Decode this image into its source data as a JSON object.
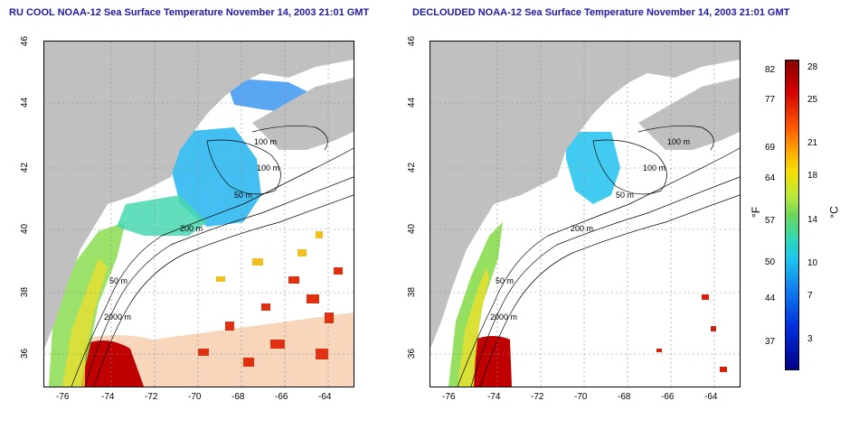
{
  "titles": {
    "left": "RU COOL NOAA-12 Sea Surface Temperature November 14, 2003 21:01 GMT",
    "right": "DECLOUDED NOAA-12 Sea Surface Temperature November 14, 2003 21:01 GMT"
  },
  "axes": {
    "x_ticks": [
      "-76",
      "-74",
      "-72",
      "-70",
      "-68",
      "-66",
      "-64"
    ],
    "y_ticks": [
      "46",
      "44",
      "42",
      "40",
      "38",
      "36"
    ]
  },
  "contour_labels": {
    "left": [
      "100 m",
      "100 m",
      "50 m",
      "200 m",
      "50 m",
      "2000 m"
    ],
    "right": [
      "100 m",
      "100 m",
      "50 m",
      "200 m",
      "50 m",
      "2000 m"
    ]
  },
  "colorbar": {
    "fahrenheit": [
      "82",
      "77",
      "69",
      "64",
      "57",
      "50",
      "44",
      "37"
    ],
    "celsius": [
      "28",
      "25",
      "21",
      "18",
      "14",
      "10",
      "7",
      "3"
    ],
    "unit_f": "°F",
    "unit_c": "°C"
  },
  "colors": {
    "land": "#c0c0c0",
    "title": "#1a1aa8",
    "warm": "#d40000",
    "cool": "#1cc8f0"
  }
}
